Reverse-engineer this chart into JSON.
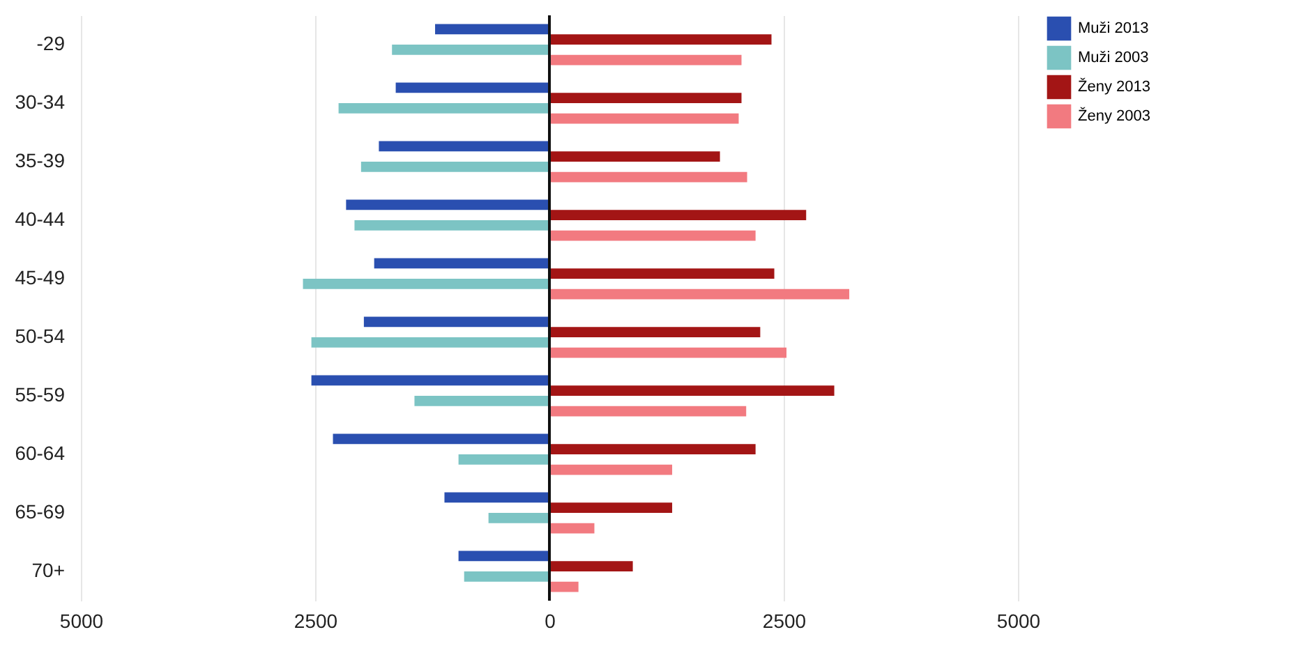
{
  "chart_data": {
    "type": "bar",
    "orientation": "horizontal",
    "categories": [
      "-29",
      "30-34",
      "35-39",
      "40-44",
      "45-49",
      "50-54",
      "55-59",
      "60-64",
      "65-69",
      "70+"
    ],
    "series": [
      {
        "name": "Muži 2013",
        "color": "#2a4fb0",
        "values": [
          -1220,
          -1640,
          -1820,
          -2170,
          -1870,
          -1980,
          -2540,
          -2310,
          -1120,
          -970
        ]
      },
      {
        "name": "Muži 2003",
        "color": "#7cc4c4",
        "values": [
          -1680,
          -2250,
          -2010,
          -2080,
          -2630,
          -2540,
          -1440,
          -970,
          -650,
          -910
        ]
      },
      {
        "name": "Ženy 2013",
        "color": "#a31515",
        "values": [
          2370,
          2050,
          1820,
          2740,
          2400,
          2250,
          3040,
          2200,
          1310,
          890
        ]
      },
      {
        "name": "Ženy 2003",
        "color": "#f27a80",
        "values": [
          2050,
          2020,
          2110,
          2200,
          3200,
          2530,
          2100,
          1310,
          480,
          310
        ]
      }
    ],
    "xlim": [
      -5000,
      5000
    ],
    "xticks": [
      {
        "value": -5000,
        "label": "5000"
      },
      {
        "value": -2500,
        "label": "2500"
      },
      0,
      2500,
      5000
    ],
    "ref_lines": [
      {
        "axis": "x",
        "value": 0,
        "color": "#111111"
      }
    ],
    "grid": "x",
    "legend": "right"
  }
}
